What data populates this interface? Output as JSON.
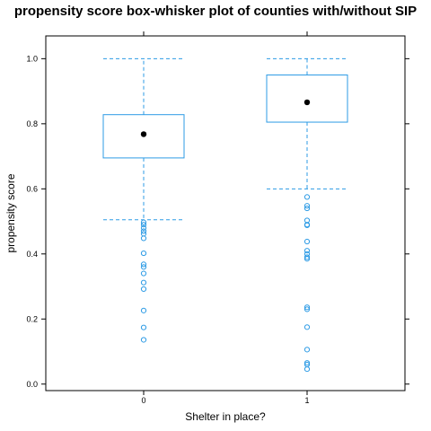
{
  "chart_data": {
    "type": "boxplot",
    "title": "propensity score box-whisker plot of counties with/without SIP",
    "xlabel": "Shelter in place?",
    "ylabel": "propensity score",
    "categories": [
      "0",
      "1"
    ],
    "ylim": [
      -0.02,
      1.07
    ],
    "yticks": [
      "0.0",
      "0.2",
      "0.4",
      "0.6",
      "0.8",
      "1.0"
    ],
    "grid": false,
    "color": "#2d9be5",
    "median_color": "#000000",
    "boxes": [
      {
        "category": "0",
        "whisker_low": 0.505,
        "q1": 0.695,
        "median": 0.768,
        "q3": 0.828,
        "whisker_high": 1.0,
        "outliers": [
          0.497,
          0.49,
          0.48,
          0.47,
          0.462,
          0.448,
          0.402,
          0.368,
          0.36,
          0.34,
          0.312,
          0.292,
          0.226,
          0.174,
          0.136
        ]
      },
      {
        "category": "1",
        "whisker_low": 0.6,
        "q1": 0.805,
        "median": 0.866,
        "q3": 0.95,
        "whisker_high": 1.0,
        "outliers": [
          0.575,
          0.548,
          0.54,
          0.503,
          0.49,
          0.488,
          0.438,
          0.41,
          0.4,
          0.39,
          0.385,
          0.236,
          0.23,
          0.175,
          0.106,
          0.065,
          0.06,
          0.046
        ]
      }
    ]
  }
}
